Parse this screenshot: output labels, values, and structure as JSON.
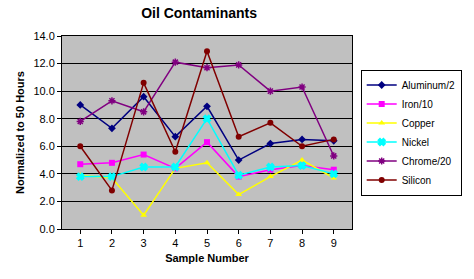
{
  "chart_data": {
    "type": "line",
    "title": "Oil Contaminants",
    "x_label": "Sample Number",
    "y_label": "Normalized to 50 Hours",
    "categories": [
      "1",
      "2",
      "3",
      "4",
      "5",
      "6",
      "7",
      "8",
      "9"
    ],
    "series": [
      {
        "name": "Aluminum/2",
        "color": "#000080",
        "marker": "diamond",
        "values": [
          9.0,
          7.3,
          9.6,
          6.7,
          8.9,
          5.0,
          6.2,
          6.5,
          6.4
        ]
      },
      {
        "name": "Iron/10",
        "color": "#FF00FF",
        "marker": "square",
        "values": [
          4.7,
          4.8,
          5.4,
          4.4,
          6.3,
          3.8,
          4.3,
          4.6,
          4.3
        ]
      },
      {
        "name": "Copper",
        "color": "#FFFF00",
        "marker": "triangle-up",
        "values": [
          3.9,
          3.7,
          1.0,
          4.4,
          4.8,
          2.5,
          3.8,
          5.0,
          3.7
        ]
      },
      {
        "name": "Nickel",
        "color": "#00FFFF",
        "marker": "x",
        "values": [
          3.8,
          3.8,
          4.5,
          4.5,
          8.0,
          3.9,
          4.5,
          4.6,
          4.0
        ]
      },
      {
        "name": "Chrome/20",
        "color": "#800080",
        "marker": "asterisk",
        "values": [
          7.8,
          9.3,
          8.5,
          12.1,
          11.7,
          11.9,
          10.0,
          10.3,
          5.3
        ]
      },
      {
        "name": "Silicon",
        "color": "#800000",
        "marker": "circle",
        "values": [
          6.0,
          2.8,
          10.6,
          5.6,
          12.9,
          6.7,
          7.7,
          6.0,
          6.5
        ]
      }
    ],
    "ylim": [
      0,
      14
    ],
    "yticks": [
      {
        "value": 0,
        "label": "0.0"
      },
      {
        "value": 2,
        "label": "2.0"
      },
      {
        "value": 4,
        "label": "4.0"
      },
      {
        "value": 6,
        "label": "6.0"
      },
      {
        "value": 8,
        "label": "8.0"
      },
      {
        "value": 10,
        "label": "10.0"
      },
      {
        "value": 12,
        "label": "12.0"
      },
      {
        "value": 14,
        "label": "14.0"
      }
    ],
    "grid": true,
    "legend": "right"
  }
}
